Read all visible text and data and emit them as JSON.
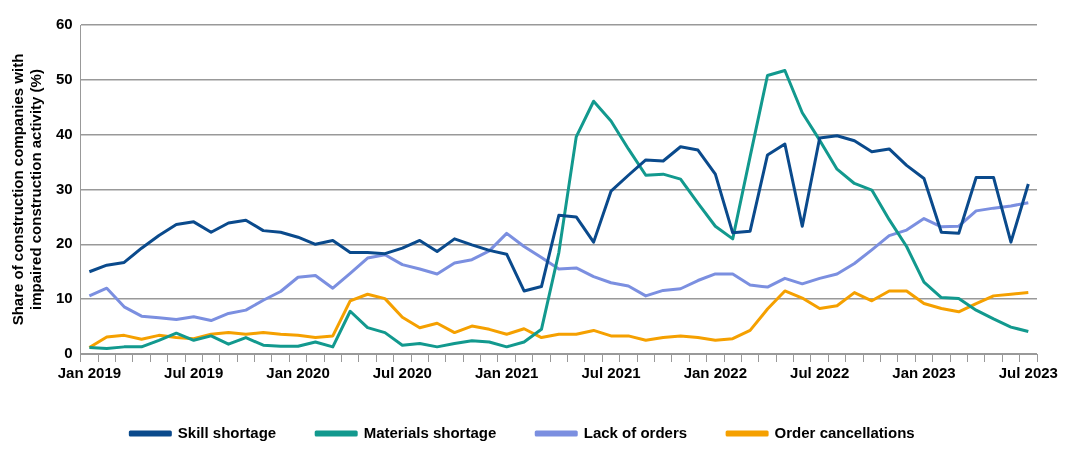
{
  "chart_data": {
    "type": "line",
    "ylabel": "Share of construction companies with impaired construction activity (%)",
    "categories": [
      "Jan 2019",
      null,
      null,
      null,
      null,
      null,
      "Jul 2019",
      null,
      null,
      null,
      null,
      null,
      "Jan 2020",
      null,
      null,
      null,
      null,
      null,
      "Jul 2020",
      null,
      null,
      null,
      null,
      null,
      "Jan 2021",
      null,
      null,
      null,
      null,
      null,
      "Jul 2021",
      null,
      null,
      null,
      null,
      null,
      "Jan 2022",
      null,
      null,
      null,
      null,
      null,
      "Jul 2022",
      null,
      null,
      null,
      null,
      null,
      "Jan 2023",
      null,
      null,
      null,
      null,
      null,
      "Jul 2023"
    ],
    "series": [
      {
        "name": "Skill shortage",
        "color": "#0a4a8c",
        "values": [
          15,
          16.2,
          16.7,
          19.3,
          21.6,
          23.6,
          24.1,
          22.2,
          23.9,
          24.4,
          22.5,
          22.2,
          21.3,
          20,
          20.7,
          18.5,
          18.5,
          18.3,
          19.3,
          20.7,
          18.7,
          21,
          19.9,
          18.9,
          18.2,
          11.5,
          12.3,
          25.3,
          25,
          20.4,
          29.7,
          32.6,
          35.4,
          35.2,
          37.8,
          37.2,
          32.8,
          22.1,
          22.4,
          36.3,
          38.3,
          23.3,
          39.4,
          39.8,
          38.9,
          36.9,
          37.4,
          34.4,
          32,
          22.2,
          22,
          32.2,
          32.2,
          20.4,
          31
        ]
      },
      {
        "name": "Materials shortage",
        "color": "#12998e",
        "values": [
          1.2,
          1,
          1.3,
          1.3,
          2.5,
          3.8,
          2.5,
          3.3,
          1.8,
          3,
          1.6,
          1.4,
          1.4,
          2.2,
          1.3,
          7.8,
          4.8,
          3.9,
          1.6,
          1.9,
          1.3,
          1.9,
          2.4,
          2.2,
          1.3,
          2.2,
          4.5,
          18.5,
          39.6,
          46.1,
          42.5,
          37.4,
          32.6,
          32.8,
          31.9,
          27.5,
          23.3,
          21,
          36,
          50.8,
          51.7,
          44,
          39,
          33.7,
          31.1,
          29.9,
          24.5,
          19.6,
          13.1,
          10.3,
          10.1,
          8,
          6.4,
          4.9,
          4.1
        ]
      },
      {
        "name": "Lack of orders",
        "color": "#7b8fe0",
        "values": [
          10.6,
          12,
          8.6,
          6.9,
          6.6,
          6.3,
          6.8,
          6.1,
          7.4,
          8,
          9.8,
          11.4,
          14,
          14.3,
          12,
          14.7,
          17.5,
          18.1,
          16.3,
          15.5,
          14.6,
          16.6,
          17.2,
          18.8,
          22,
          19.6,
          17.6,
          15.5,
          15.7,
          14.1,
          13,
          12.4,
          10.6,
          11.6,
          11.9,
          13.4,
          14.6,
          14.6,
          12.6,
          12.2,
          13.8,
          12.8,
          13.8,
          14.6,
          16.5,
          19,
          21.6,
          22.6,
          24.7,
          23.2,
          23.3,
          26.1,
          26.6,
          27,
          27.6
        ]
      },
      {
        "name": "Order cancellations",
        "color": "#f5a000",
        "values": [
          1.2,
          3.1,
          3.4,
          2.7,
          3.4,
          3,
          2.8,
          3.6,
          3.9,
          3.6,
          3.9,
          3.6,
          3.4,
          3,
          3.3,
          9.7,
          10.9,
          10.1,
          6.7,
          4.8,
          5.6,
          3.9,
          5.1,
          4.5,
          3.6,
          4.6,
          3,
          3.6,
          3.6,
          4.3,
          3.3,
          3.3,
          2.5,
          3,
          3.3,
          3,
          2.5,
          2.8,
          4.3,
          8.2,
          11.5,
          10.2,
          8.3,
          8.8,
          11.2,
          9.7,
          11.5,
          11.5,
          9.2,
          8.3,
          7.7,
          9.2,
          10.6,
          10.9,
          11.2
        ]
      }
    ],
    "ylim": [
      0,
      60
    ],
    "yticks": [
      0,
      10,
      20,
      30,
      40,
      50,
      60
    ],
    "grid": "y",
    "legend": "bottom",
    "marker": "none",
    "line_style": "solid"
  }
}
